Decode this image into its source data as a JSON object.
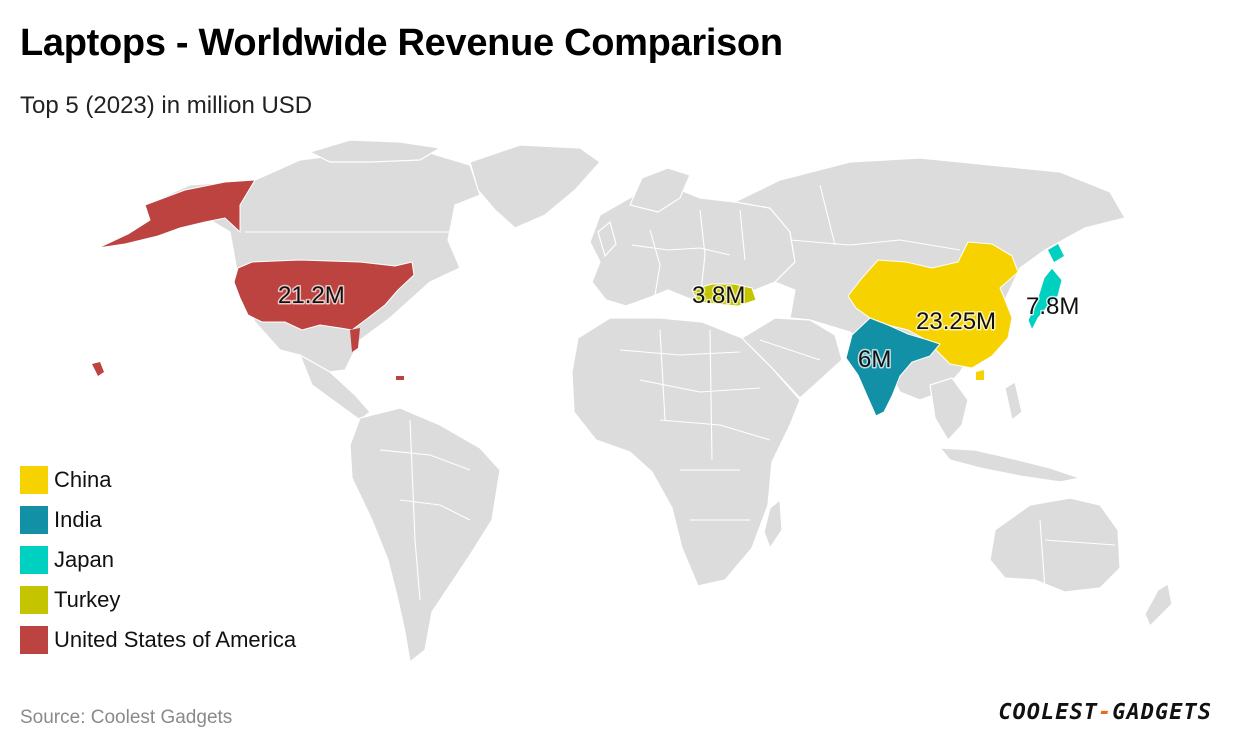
{
  "header": {
    "title": "Laptops - Worldwide Revenue Comparison",
    "subtitle": "Top 5 (2023) in million USD"
  },
  "chart_data": {
    "type": "choropleth-map",
    "title": "Laptops - Worldwide Revenue Comparison",
    "subtitle": "Top 5 (2023) in million USD",
    "unit": "million USD",
    "year": 2023,
    "regions": [
      {
        "country": "China",
        "value": 23.25,
        "label": "23.25M",
        "color": "#f6d300"
      },
      {
        "country": "United States of America",
        "value": 21.2,
        "label": "21.2M",
        "color": "#bd4340"
      },
      {
        "country": "Japan",
        "value": 7.8,
        "label": "7.8M",
        "color": "#00d0c0"
      },
      {
        "country": "India",
        "value": 6,
        "label": "6M",
        "color": "#1291a6"
      },
      {
        "country": "Turkey",
        "value": 3.8,
        "label": "3.8M",
        "color": "#c5c400"
      }
    ],
    "legend_position": "bottom-left"
  },
  "legend": {
    "items": [
      {
        "label": "China",
        "color": "#f6d300"
      },
      {
        "label": "India",
        "color": "#1291a6"
      },
      {
        "label": "Japan",
        "color": "#00d0c0"
      },
      {
        "label": "Turkey",
        "color": "#c5c400"
      },
      {
        "label": "United States of America",
        "color": "#bd4340"
      }
    ]
  },
  "footer": {
    "source": "Source: Coolest Gadgets",
    "brand_left": "COOLEST",
    "brand_sep": "-",
    "brand_right": "GADGETS"
  },
  "colors": {
    "land": "#dcdcdc",
    "border": "#ffffff"
  }
}
